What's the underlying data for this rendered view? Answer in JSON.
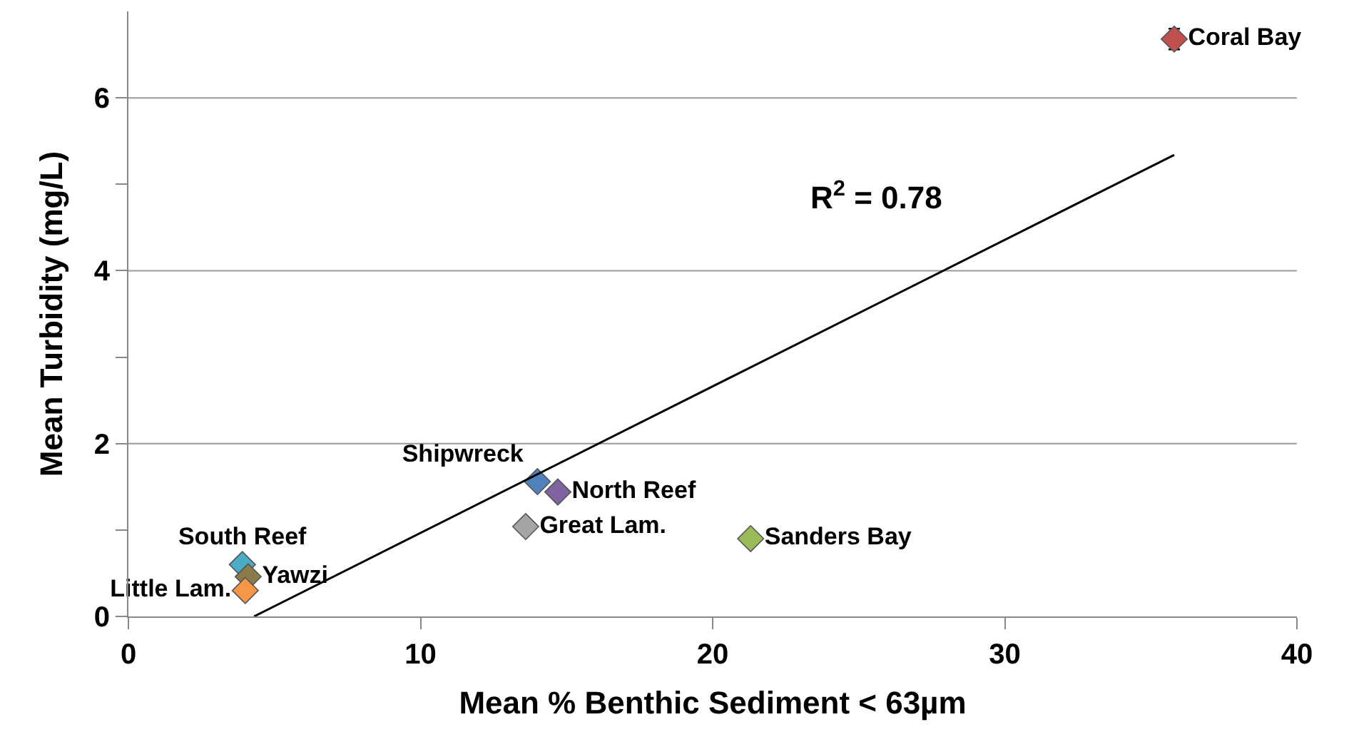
{
  "chart_data": {
    "type": "scatter",
    "xlabel": "Mean % Benthic Sediment < 63µm",
    "ylabel": "Mean Turbidity (mg/L)",
    "xlim": [
      0,
      40
    ],
    "xticks": [
      0,
      10,
      20,
      30,
      40
    ],
    "ylim": [
      0,
      7
    ],
    "yticks": [
      0,
      {
        "value": 1,
        "label": null
      },
      2,
      {
        "value": 3,
        "label": null
      },
      4,
      {
        "value": 5,
        "label": null
      },
      6
    ],
    "grid": "y",
    "marker": "diamond",
    "annotations": [
      "R$^{2}$ = 0.78"
    ],
    "series": [
      {
        "name": "Coral Bay",
        "color": "#c0504d",
        "x": [
          35.8
        ],
        "values": [
          6.68
        ],
        "errors": [
          0.12
        ]
      },
      {
        "name": "Shipwreck",
        "color": "#4f81bd",
        "x": [
          14.0
        ],
        "values": [
          1.56
        ]
      },
      {
        "name": "North Reef",
        "color": "#8064a2",
        "x": [
          14.7
        ],
        "values": [
          1.44
        ]
      },
      {
        "name": "Great Lam.",
        "color": "#a5a5a5",
        "x": [
          13.6
        ],
        "values": [
          1.04
        ]
      },
      {
        "name": "Sanders Bay",
        "color": "#9bbb59",
        "x": [
          21.3
        ],
        "values": [
          0.9
        ]
      },
      {
        "name": "South Reef",
        "color": "#4bacc6",
        "x": [
          3.9
        ],
        "values": [
          0.6
        ]
      },
      {
        "name": "Yawzi",
        "color": "#8c7b4a",
        "x": [
          4.1
        ],
        "values": [
          0.46
        ]
      },
      {
        "name": "Little Lam.",
        "color": "#f79646",
        "x": [
          4.0
        ],
        "values": [
          0.3
        ]
      },
      {
        "type": "line",
        "marker": "none",
        "color": "#000000",
        "x": [
          4.3,
          35.8
        ],
        "values": [
          0,
          5.34
        ]
      }
    ]
  }
}
